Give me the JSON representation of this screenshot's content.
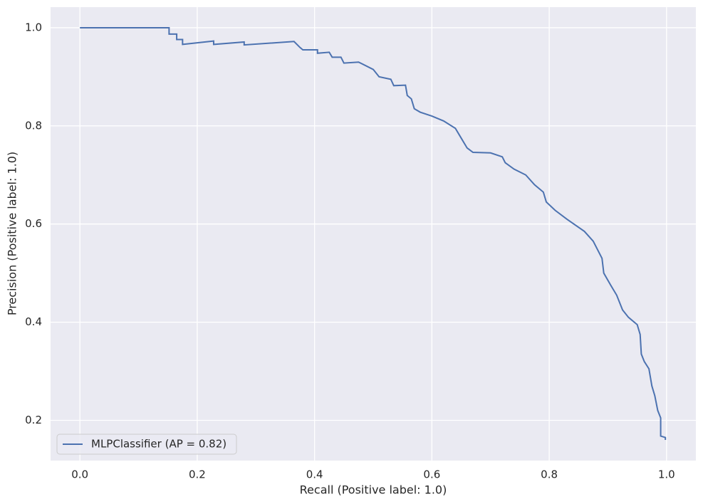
{
  "chart_data": {
    "type": "line",
    "xlabel": "Recall (Positive label: 1.0)",
    "ylabel": "Precision (Positive label: 1.0)",
    "x": [
      0,
      0.152,
      0.152,
      0.165,
      0.165,
      0.175,
      0.175,
      0.228,
      0.228,
      0.28,
      0.28,
      0.365,
      0.375,
      0.38,
      0.405,
      0.405,
      0.425,
      0.43,
      0.445,
      0.45,
      0.475,
      0.5,
      0.51,
      0.53,
      0.535,
      0.555,
      0.558,
      0.565,
      0.57,
      0.58,
      0.6,
      0.62,
      0.64,
      0.65,
      0.66,
      0.67,
      0.7,
      0.72,
      0.725,
      0.74,
      0.76,
      0.775,
      0.79,
      0.795,
      0.81,
      0.83,
      0.86,
      0.875,
      0.89,
      0.893,
      0.905,
      0.915,
      0.925,
      0.935,
      0.95,
      0.955,
      0.957,
      0.962,
      0.97,
      0.975,
      0.98,
      0.985,
      0.99,
      0.99,
      0.998,
      0.998
    ],
    "series": [
      {
        "name": "MLPClassifier (AP = 0.82)",
        "color": "#4c72b0",
        "values": [
          1.0,
          1.0,
          0.987,
          0.987,
          0.976,
          0.976,
          0.966,
          0.973,
          0.966,
          0.971,
          0.965,
          0.972,
          0.96,
          0.955,
          0.955,
          0.948,
          0.95,
          0.94,
          0.94,
          0.928,
          0.93,
          0.915,
          0.9,
          0.895,
          0.882,
          0.883,
          0.862,
          0.855,
          0.835,
          0.828,
          0.82,
          0.81,
          0.795,
          0.775,
          0.755,
          0.746,
          0.745,
          0.737,
          0.725,
          0.712,
          0.7,
          0.68,
          0.665,
          0.645,
          0.628,
          0.61,
          0.585,
          0.565,
          0.53,
          0.5,
          0.475,
          0.455,
          0.425,
          0.41,
          0.395,
          0.375,
          0.335,
          0.32,
          0.305,
          0.27,
          0.25,
          0.22,
          0.205,
          0.168,
          0.165,
          0.16
        ]
      }
    ],
    "xlim": [
      -0.05,
      1.05
    ],
    "ylim": [
      0.118,
      1.042
    ],
    "xticks": [
      {
        "value": 0,
        "label": "0.0"
      },
      0.2,
      0.4,
      0.6,
      0.8,
      {
        "value": 1,
        "label": "1.0"
      }
    ],
    "yticks": [
      0.2,
      0.4,
      0.6,
      0.8,
      {
        "value": 1,
        "label": "1.0"
      }
    ],
    "grid": true,
    "legend": "lower left"
  }
}
